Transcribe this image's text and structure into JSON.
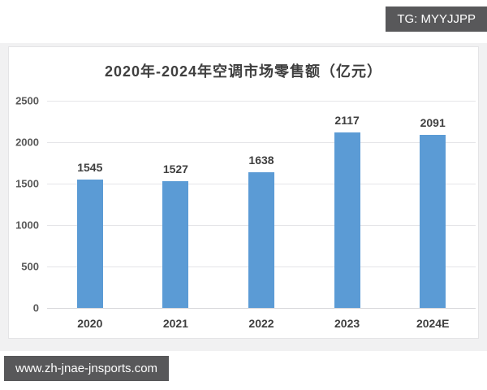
{
  "watermarks": {
    "top_right": "TG: MYYJJPP",
    "bottom_left": "www.zh-jnae-jnsports.com"
  },
  "colors": {
    "bar": "#5B9BD5",
    "badge_background": "#58585a",
    "badge_text": "#ffffff",
    "title_text": "#3f3f3f",
    "tick_text": "#595959",
    "gridline": "#e5e5e8",
    "page_band": "#f1f1f2",
    "panel_background": "#ffffff"
  },
  "chart_data": {
    "type": "bar",
    "title": "2020年-2024年空调市场零售额（亿元）",
    "categories": [
      "2020",
      "2021",
      "2022",
      "2023",
      "2024E"
    ],
    "values": [
      1545,
      1527,
      1638,
      2117,
      2091
    ],
    "xlabel": "",
    "ylabel": "",
    "ylim": [
      0,
      2500
    ],
    "yticks": [
      0,
      500,
      1000,
      1500,
      2000,
      2500
    ],
    "grid": true,
    "legend": false,
    "value_labels_shown": true
  }
}
